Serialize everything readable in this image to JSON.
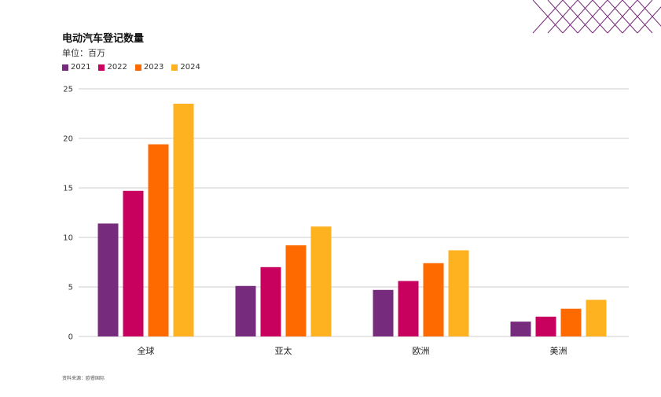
{
  "chart_data": {
    "type": "bar",
    "title": "电动汽车登记数量",
    "subtitle": "单位：百万",
    "categories": [
      "全球",
      "亚太",
      "欧洲",
      "美洲"
    ],
    "series": [
      {
        "name": "2021",
        "color": "#772b7c",
        "values": [
          11.4,
          5.1,
          4.7,
          1.5
        ]
      },
      {
        "name": "2022",
        "color": "#c8005e",
        "values": [
          14.7,
          7.0,
          5.6,
          2.0
        ]
      },
      {
        "name": "2023",
        "color": "#ff6a00",
        "values": [
          19.4,
          9.2,
          7.4,
          2.8
        ]
      },
      {
        "name": "2024",
        "color": "#ffb21f",
        "values": [
          23.5,
          11.1,
          8.7,
          3.7
        ]
      }
    ],
    "ylim": [
      0,
      25
    ],
    "yticks": [
      0,
      5,
      10,
      15,
      20,
      25
    ],
    "grid": true,
    "legend_position": "top-left"
  },
  "source": "资料来源：欧睿国际",
  "colors": {
    "decoration": "#772b7c",
    "grid": "#cccccc"
  }
}
